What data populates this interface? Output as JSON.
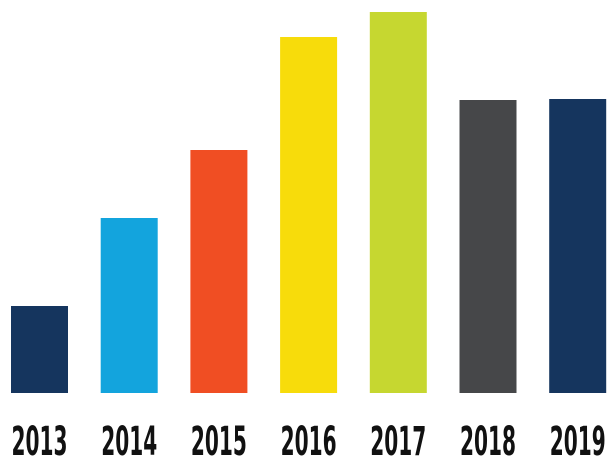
{
  "chart_data": {
    "type": "bar",
    "categories": [
      "2013",
      "2014",
      "2015",
      "2016",
      "2017",
      "2018",
      "2019"
    ],
    "values": [
      87,
      175,
      243,
      356,
      381,
      293,
      294
    ],
    "colors": [
      "#15355e",
      "#13a4dd",
      "#f04e23",
      "#f7dc0b",
      "#c6d730",
      "#464749",
      "#15355e"
    ],
    "title": "",
    "xlabel": "",
    "ylabel": "",
    "ylim": [
      0,
      400
    ],
    "grid": false,
    "legend": "none"
  }
}
